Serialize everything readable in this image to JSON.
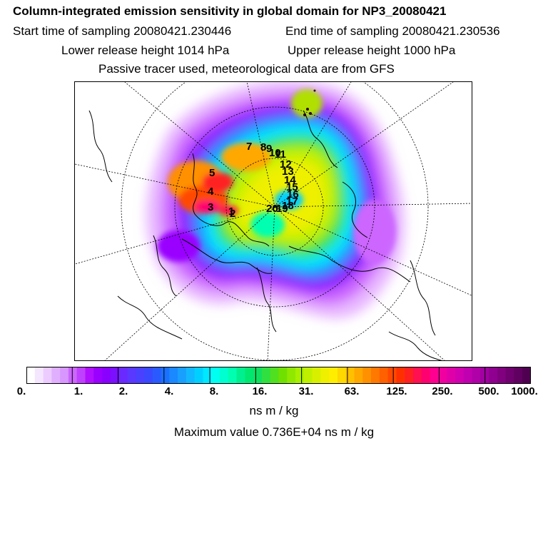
{
  "header": {
    "title": "Column-integrated emission sensitivity in global domain for NP3_20080421",
    "start_time": "Start time of sampling 20080421.230446",
    "end_time": "End time of sampling 20080421.230536",
    "lower_height": "Lower release height 1014 hPa",
    "upper_height": "Upper release height 1000 hPa",
    "tracer_note": "Passive tracer used, meteorological data are from GFS"
  },
  "colorbar": {
    "tick_labels": [
      "0.",
      "1.",
      "2.",
      "4.",
      "8.",
      "16.",
      "31.",
      "63.",
      "125.",
      "250.",
      "500.",
      "1000."
    ],
    "colors": [
      "#ffffff",
      "#f5e6ff",
      "#ecccff",
      "#e0b0ff",
      "#d896ff",
      "#cc66ff",
      "#c040ff",
      "#b010ff",
      "#9900ff",
      "#8a00ff",
      "#7a10ff",
      "#6a2aff",
      "#5a38ff",
      "#4a40ff",
      "#3a48ff",
      "#2a5aff",
      "#1a70ff",
      "#1a88ff",
      "#19a0ff",
      "#12b8ff",
      "#00d0ff",
      "#00e8ff",
      "#00fff0",
      "#00ffd0",
      "#00ffb0",
      "#00f090",
      "#00e870",
      "#10e060",
      "#30e040",
      "#50e020",
      "#70e000",
      "#90e800",
      "#a8f000",
      "#c0f000",
      "#d8f000",
      "#eef000",
      "#ffee00",
      "#ffd800",
      "#ffc000",
      "#ffa800",
      "#ff9000",
      "#ff7800",
      "#ff6000",
      "#ff4800",
      "#ff3000",
      "#ff2020",
      "#ff1050",
      "#ff0070",
      "#ff0090",
      "#f000a0",
      "#e000a8",
      "#d000b0",
      "#c000b0",
      "#b000a8",
      "#a000a0",
      "#900090",
      "#800080",
      "#700070",
      "#600060",
      "#500050"
    ]
  },
  "units_label": "ns m / kg",
  "max_value_label": "Maximum value  0.736E+04 ns m / kg",
  "map": {
    "trajectory_labels": [
      "1",
      "2",
      "3",
      "4",
      "5",
      "7",
      "8",
      "9",
      "10",
      "11",
      "12",
      "13",
      "14",
      "15",
      "16",
      "17",
      "18",
      "19",
      "20"
    ]
  }
}
